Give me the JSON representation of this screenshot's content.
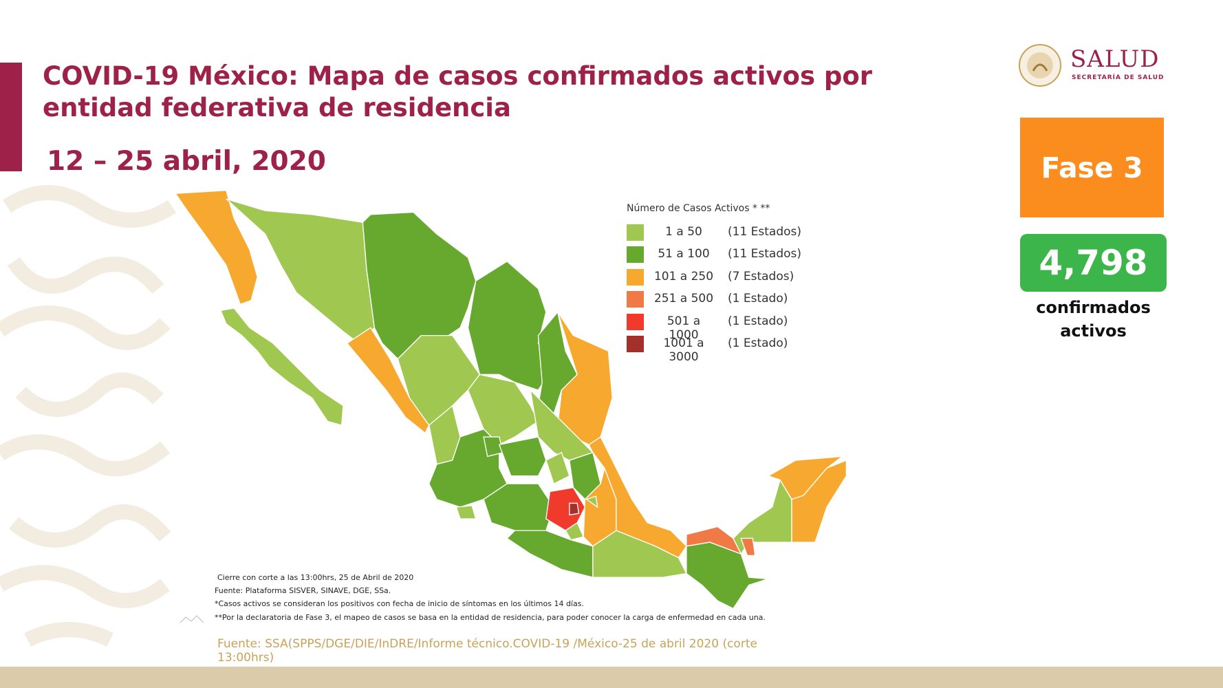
{
  "logo": {
    "name": "SALUD",
    "subtitle": "SECRETARÍA DE SALUD"
  },
  "header": {
    "title": "COVID-19 México: Mapa de casos confirmados activos por entidad federativa de residencia",
    "date": "12 – 25 abril, 2020"
  },
  "phase": "Fase 3",
  "total": {
    "value": "4,798",
    "label": "confirmados activos"
  },
  "legend": {
    "title": "Número de Casos Activos * **",
    "items": [
      {
        "range": "1 a 50",
        "count": "(11 Estados)",
        "color": "#a0c850"
      },
      {
        "range": "51 a 100",
        "count": "(11 Estados)",
        "color": "#67a92f"
      },
      {
        "range": "101 a 250",
        "count": "(7 Estados)",
        "color": "#f7a82e"
      },
      {
        "range": "251 a 500",
        "count": "(1 Estado)",
        "color": "#f07a45"
      },
      {
        "range": "501 a 1000",
        "count": "(1 Estado)",
        "color": "#ef3a2c"
      },
      {
        "range": "1001 a 3000",
        "count": "(1 Estado)",
        "color": "#a3302b"
      }
    ]
  },
  "notes": [
    "Cierre con corte a las 13:00hrs, 25 de Abril de 2020",
    "Fuente: Plataforma SISVER, SINAVE, DGE, SSa.",
    "*Casos activos se consideran los positivos con fecha de inicio de síntomas en los últimos 14 días.",
    "**Por la declaratoria de Fase 3, el mapeo de casos se basa en la entidad de residencia, para poder conocer la carga de enfermedad en cada una."
  ],
  "source": "Fuente: SSA(SPPS/DGE/DIE/InDRE/Informe técnico.COVID-19 /México-25 de abril 2020 (corte 13:00hrs)"
}
